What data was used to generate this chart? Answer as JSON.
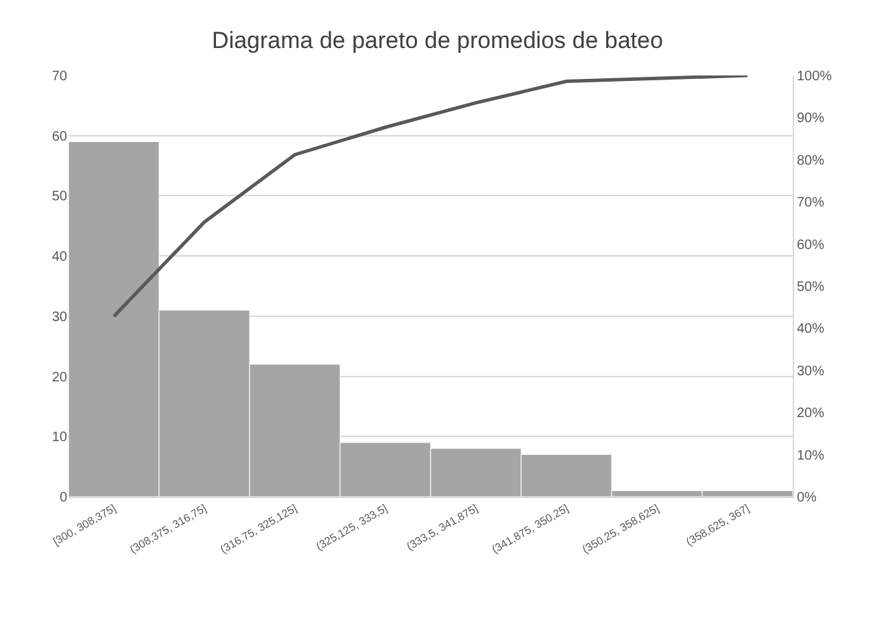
{
  "chart_data": {
    "type": "bar",
    "title": "Diagrama de pareto de promedios de bateo",
    "categories": [
      "[300, 308,375]",
      "(308,375, 316,75]",
      "(316,75, 325,125]",
      "(325,125, 333,5]",
      "(333,5, 341,875]",
      "(341,875, 350,25]",
      "(350,25, 358,625]",
      "(358,625, 367]"
    ],
    "series": [
      {
        "color": "#a5a5a5",
        "values": [
          59,
          31,
          22,
          9,
          8,
          7,
          1,
          1
        ]
      },
      {
        "type": "line",
        "axis": "y2",
        "color": "#595959",
        "values": [
          42.8,
          65.2,
          81.2,
          87.7,
          93.5,
          98.6,
          99.3,
          100
        ]
      }
    ],
    "ylim": [
      0,
      70
    ],
    "yticks": [
      0,
      10,
      20,
      30,
      40,
      50,
      60,
      70
    ],
    "y2lim": [
      0,
      100
    ],
    "y2ticks": [
      {
        "value": 0,
        "label": "0%"
      },
      {
        "value": 10,
        "label": "10%"
      },
      {
        "value": 20,
        "label": "20%"
      },
      {
        "value": 30,
        "label": "30%"
      },
      {
        "value": 40,
        "label": "40%"
      },
      {
        "value": 50,
        "label": "50%"
      },
      {
        "value": 60,
        "label": "60%"
      },
      {
        "value": 70,
        "label": "70%"
      },
      {
        "value": 80,
        "label": "80%"
      },
      {
        "value": 90,
        "label": "90%"
      },
      {
        "value": 100,
        "label": "100%"
      }
    ],
    "grid": "y",
    "legend": false,
    "marker": "none",
    "line_style": "solid"
  }
}
